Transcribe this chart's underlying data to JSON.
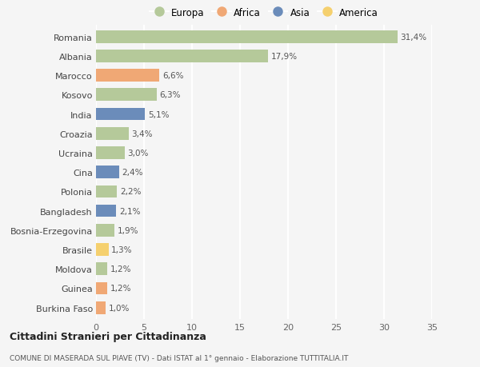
{
  "countries": [
    "Romania",
    "Albania",
    "Marocco",
    "Kosovo",
    "India",
    "Croazia",
    "Ucraina",
    "Cina",
    "Polonia",
    "Bangladesh",
    "Bosnia-Erzegovina",
    "Brasile",
    "Moldova",
    "Guinea",
    "Burkina Faso"
  ],
  "values": [
    31.4,
    17.9,
    6.6,
    6.3,
    5.1,
    3.4,
    3.0,
    2.4,
    2.2,
    2.1,
    1.9,
    1.3,
    1.2,
    1.2,
    1.0
  ],
  "labels": [
    "31,4%",
    "17,9%",
    "6,6%",
    "6,3%",
    "5,1%",
    "3,4%",
    "3,0%",
    "2,4%",
    "2,2%",
    "2,1%",
    "1,9%",
    "1,3%",
    "1,2%",
    "1,2%",
    "1,0%"
  ],
  "continents": [
    "Europa",
    "Europa",
    "Africa",
    "Europa",
    "Asia",
    "Europa",
    "Europa",
    "Asia",
    "Europa",
    "Asia",
    "Europa",
    "America",
    "Europa",
    "Africa",
    "Africa"
  ],
  "continent_colors": {
    "Europa": "#b5c99a",
    "Africa": "#f0a875",
    "Asia": "#6b8cba",
    "America": "#f5d06e"
  },
  "legend_order": [
    "Europa",
    "Africa",
    "Asia",
    "America"
  ],
  "bg_color": "#f5f5f5",
  "grid_color": "#ffffff",
  "title1": "Cittadini Stranieri per Cittadinanza",
  "title2": "COMUNE DI MASERADA SUL PIAVE (TV) - Dati ISTAT al 1° gennaio - Elaborazione TUTTITALIA.IT",
  "xlim": [
    0,
    35
  ],
  "xticks": [
    0,
    5,
    10,
    15,
    20,
    25,
    30,
    35
  ]
}
